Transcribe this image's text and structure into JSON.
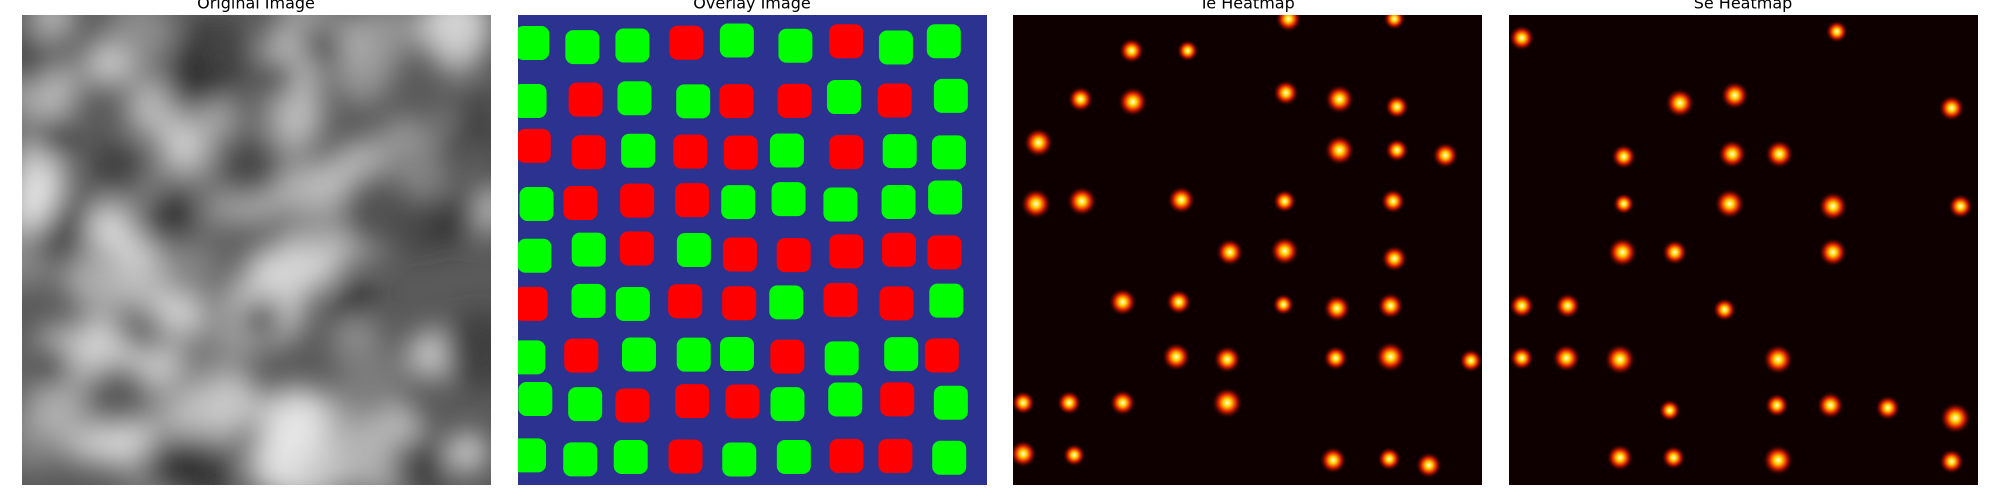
{
  "panels": [
    {
      "title": "Original Image"
    },
    {
      "title": "Overlay Image"
    },
    {
      "title": "Te Heatmap"
    },
    {
      "title": "Se Heatmap"
    }
  ]
}
